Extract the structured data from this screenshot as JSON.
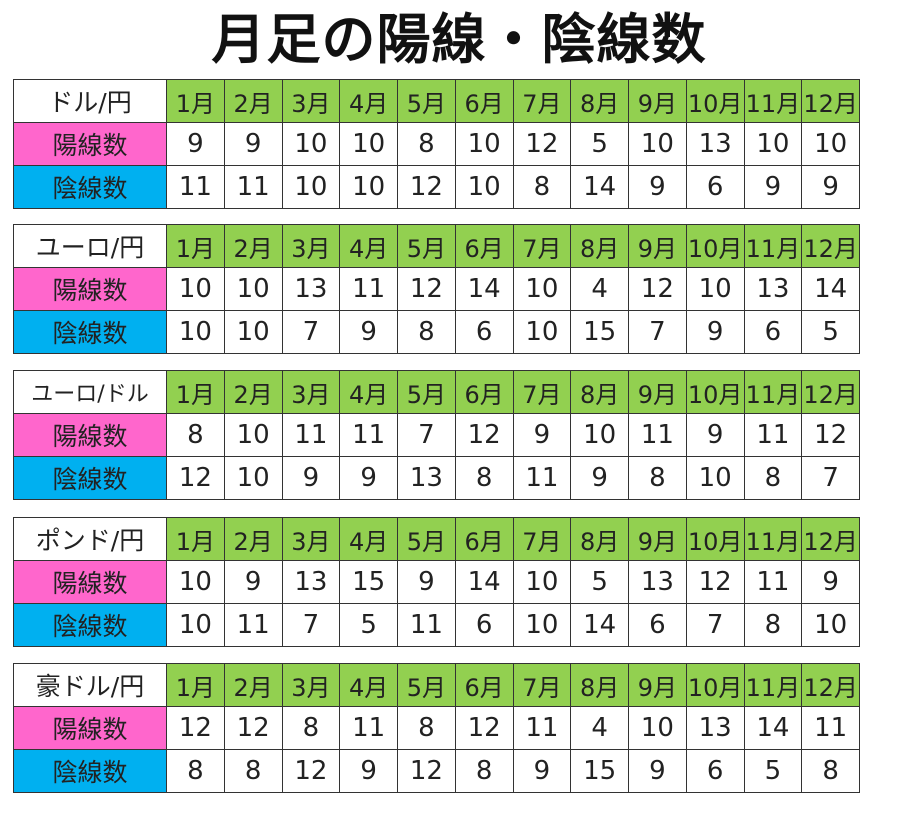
{
  "title": "月足の陽線・陰線数",
  "months": [
    "1月",
    "2月",
    "3月",
    "4月",
    "5月",
    "6月",
    "7月",
    "8月",
    "9月",
    "10月",
    "11月",
    "12月"
  ],
  "labels": {
    "yosen": "陽線数",
    "insen": "陰線数"
  },
  "colors": {
    "month_header": "#92d050",
    "yosen_label": "#ff66cc",
    "insen_label": "#00b0f0"
  },
  "blocks": [
    {
      "pair": "ドル/円",
      "yosen": [
        9,
        9,
        10,
        10,
        8,
        10,
        12,
        5,
        10,
        13,
        10,
        10
      ],
      "insen": [
        11,
        11,
        10,
        10,
        12,
        10,
        8,
        14,
        9,
        6,
        9,
        9
      ]
    },
    {
      "pair": "ユーロ/円",
      "yosen": [
        10,
        10,
        13,
        11,
        12,
        14,
        10,
        4,
        12,
        10,
        13,
        14
      ],
      "insen": [
        10,
        10,
        7,
        9,
        8,
        6,
        10,
        15,
        7,
        9,
        6,
        5
      ]
    },
    {
      "pair": "ユーロ/ドル",
      "yosen": [
        8,
        10,
        11,
        11,
        7,
        12,
        9,
        10,
        11,
        9,
        11,
        12
      ],
      "insen": [
        12,
        10,
        9,
        9,
        13,
        8,
        11,
        9,
        8,
        10,
        8,
        7
      ]
    },
    {
      "pair": "ポンド/円",
      "yosen": [
        10,
        9,
        13,
        15,
        9,
        14,
        10,
        5,
        13,
        12,
        11,
        9
      ],
      "insen": [
        10,
        11,
        7,
        5,
        11,
        6,
        10,
        14,
        6,
        7,
        8,
        10
      ]
    },
    {
      "pair": "豪ドル/円",
      "yosen": [
        12,
        12,
        8,
        11,
        8,
        12,
        11,
        4,
        10,
        13,
        14,
        11
      ],
      "insen": [
        8,
        8,
        12,
        9,
        12,
        8,
        9,
        15,
        9,
        6,
        5,
        8
      ]
    }
  ]
}
